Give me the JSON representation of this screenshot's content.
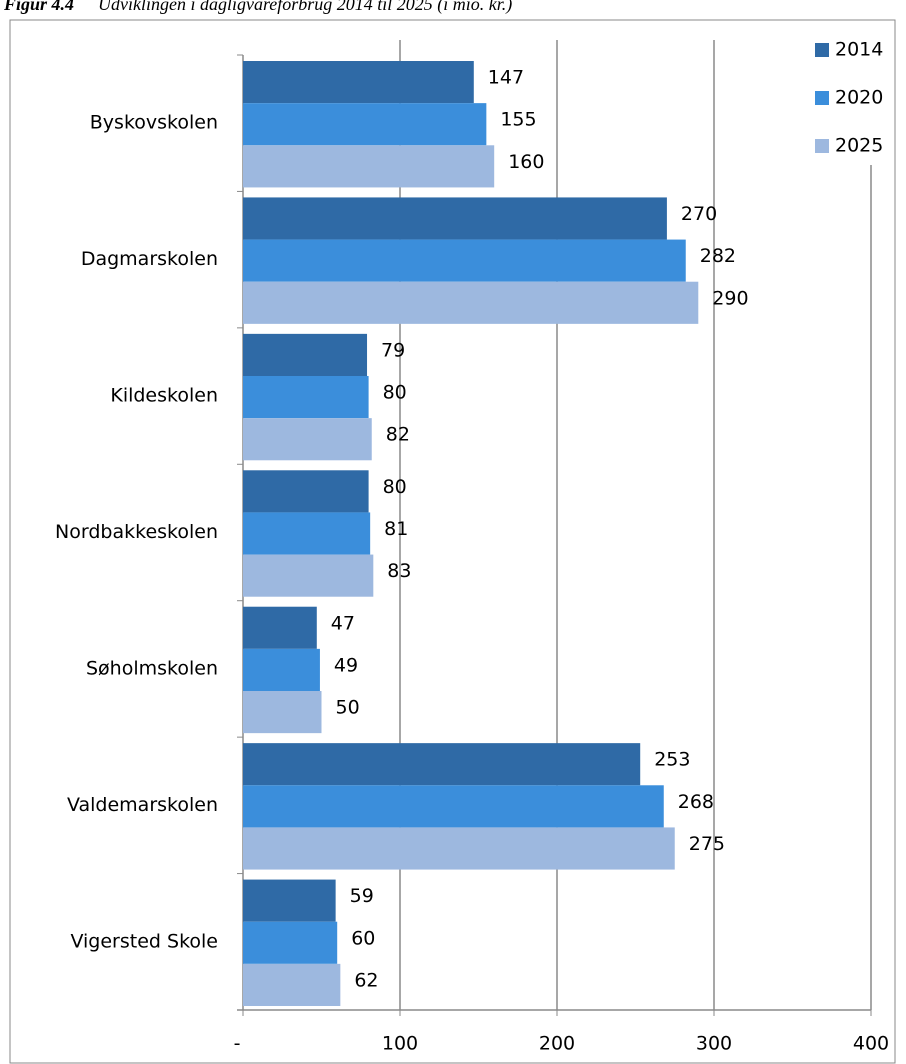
{
  "chart_data": {
    "type": "barh",
    "figure_label": "Figur 4.4",
    "title": "Udviklingen i dagligvareforbrug 2014 til 2025 (i mio. kr.)",
    "categories": [
      "Byskovskolen",
      "Dagmarskolen",
      "Kildeskolen",
      "Nordbakkeskolen",
      "Søholmskolen",
      "Valdemarskolen",
      "Vigersted Skole"
    ],
    "series": [
      {
        "name": "2014",
        "color": "#2f6aa6",
        "values": [
          147,
          270,
          79,
          80,
          47,
          253,
          59
        ]
      },
      {
        "name": "2020",
        "color": "#3b8edb",
        "values": [
          155,
          282,
          80,
          81,
          49,
          268,
          60
        ]
      },
      {
        "name": "2025",
        "color": "#9db8df",
        "values": [
          160,
          290,
          82,
          83,
          50,
          275,
          62
        ]
      }
    ],
    "xlim": [
      0,
      400
    ],
    "xticks": [
      {
        "value": 0,
        "label": "-"
      },
      100,
      200,
      300,
      400
    ],
    "grid": true,
    "legend": "top-right"
  }
}
